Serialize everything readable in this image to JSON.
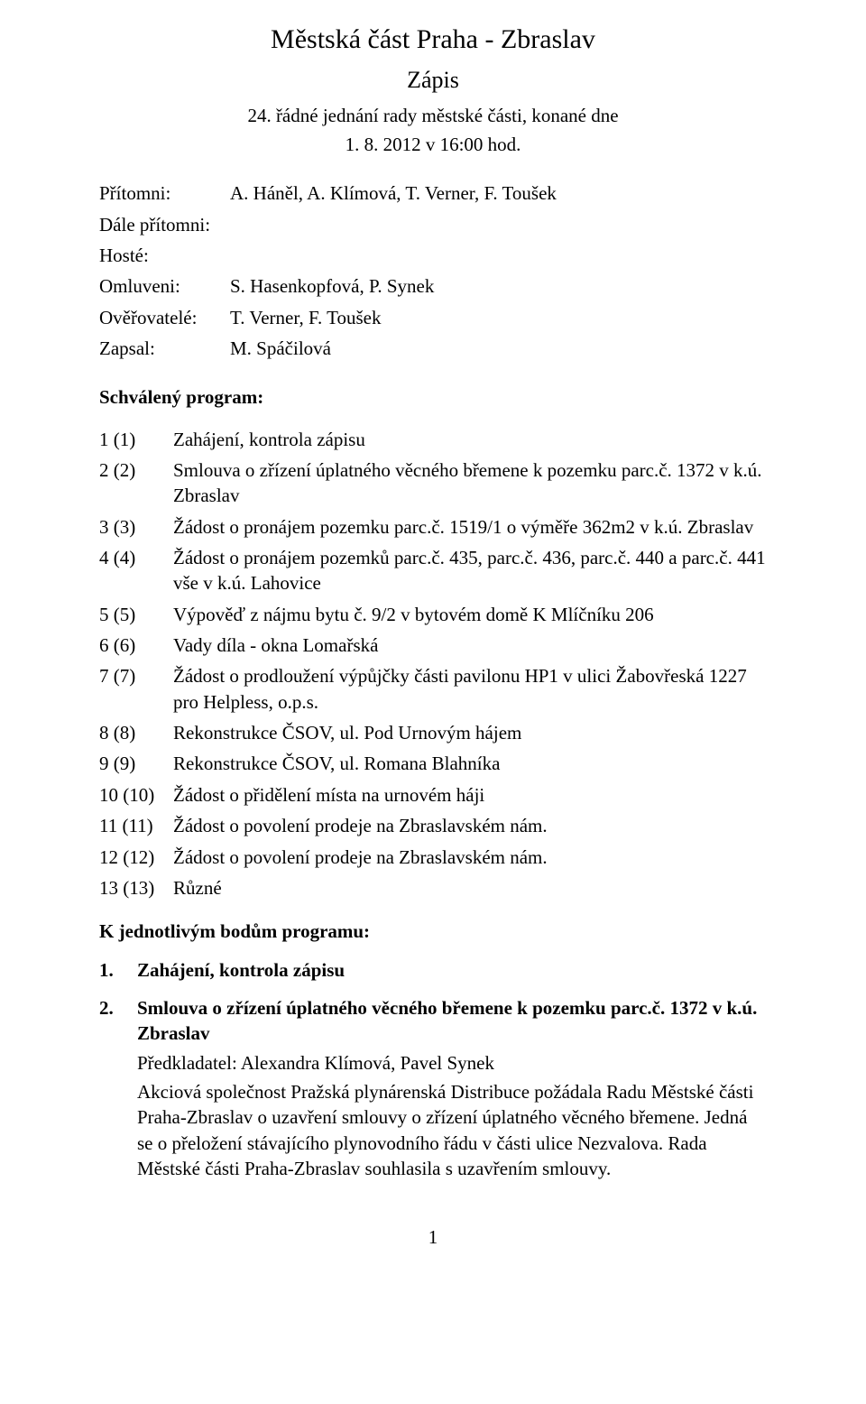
{
  "header": {
    "title": "Městská část Praha - Zbraslav",
    "subtitle": "Zápis",
    "meeting_line": "24. řádné jednání rady městské části, konané dne",
    "datetime_line": "1. 8. 2012 v 16:00 hod."
  },
  "attendance": {
    "rows": [
      {
        "label": "Přítomni:",
        "value": "A. Háněl, A. Klímová, T. Verner, F. Toušek"
      },
      {
        "label": "Dále přítomni:",
        "value": ""
      },
      {
        "label": "Hosté:",
        "value": ""
      },
      {
        "label": "Omluveni:",
        "value": "S. Hasenkopfová, P. Synek"
      },
      {
        "label": "Ověřovatelé:",
        "value": "T. Verner, F. Toušek"
      },
      {
        "label": "Zapsal:",
        "value": "M. Spáčilová"
      }
    ]
  },
  "program": {
    "heading": "Schválený program:",
    "items": [
      {
        "num": "1 (1)",
        "text": "Zahájení, kontrola zápisu"
      },
      {
        "num": "2 (2)",
        "text": "Smlouva o zřízení úplatného věcného břemene k pozemku parc.č. 1372 v k.ú. Zbraslav"
      },
      {
        "num": "3 (3)",
        "text": "Žádost o pronájem pozemku parc.č. 1519/1 o výměře 362m2 v k.ú. Zbraslav"
      },
      {
        "num": "4 (4)",
        "text": "Žádost o pronájem pozemků parc.č. 435, parc.č. 436, parc.č. 440 a parc.č. 441 vše v k.ú. Lahovice"
      },
      {
        "num": "5 (5)",
        "text": "Výpověď z nájmu bytu č. 9/2 v bytovém domě K Mlíčníku 206"
      },
      {
        "num": "6 (6)",
        "text": "Vady díla - okna Lomařská"
      },
      {
        "num": "7 (7)",
        "text": "Žádost o prodloužení výpůjčky části pavilonu HP1 v ulici Žabovřeská 1227 pro Helpless, o.p.s."
      },
      {
        "num": "8 (8)",
        "text": "Rekonstrukce ČSOV, ul. Pod Urnovým hájem"
      },
      {
        "num": "9 (9)",
        "text": "Rekonstrukce ČSOV, ul. Romana Blahníka"
      },
      {
        "num": "10 (10)",
        "text": "Žádost o přidělení místa na urnovém háji"
      },
      {
        "num": "11 (11)",
        "text": "Žádost o povolení prodeje na Zbraslavském nám."
      },
      {
        "num": "12 (12)",
        "text": "Žádost o povolení prodeje na Zbraslavském nám."
      },
      {
        "num": "13 (13)",
        "text": "Různé"
      }
    ]
  },
  "details": {
    "heading": "K jednotlivým bodům programu:",
    "items": [
      {
        "num": "1.",
        "title": "Zahájení, kontrola zápisu",
        "predkladatel": "",
        "body": ""
      },
      {
        "num": "2.",
        "title": "Smlouva o zřízení úplatného věcného břemene k pozemku parc.č. 1372 v k.ú. Zbraslav",
        "predkladatel": "Předkladatel: Alexandra Klímová, Pavel Synek",
        "body": "Akciová společnost Pražská plynárenská Distribuce požádala Radu Městské části Praha-Zbraslav o uzavření smlouvy o zřízení úplatného věcného břemene. Jedná se o přeložení stávajícího plynovodního řádu v části ulice Nezvalova. Rada Městské části Praha-Zbraslav souhlasila s uzavřením smlouvy."
      }
    ]
  },
  "page_number": "1"
}
